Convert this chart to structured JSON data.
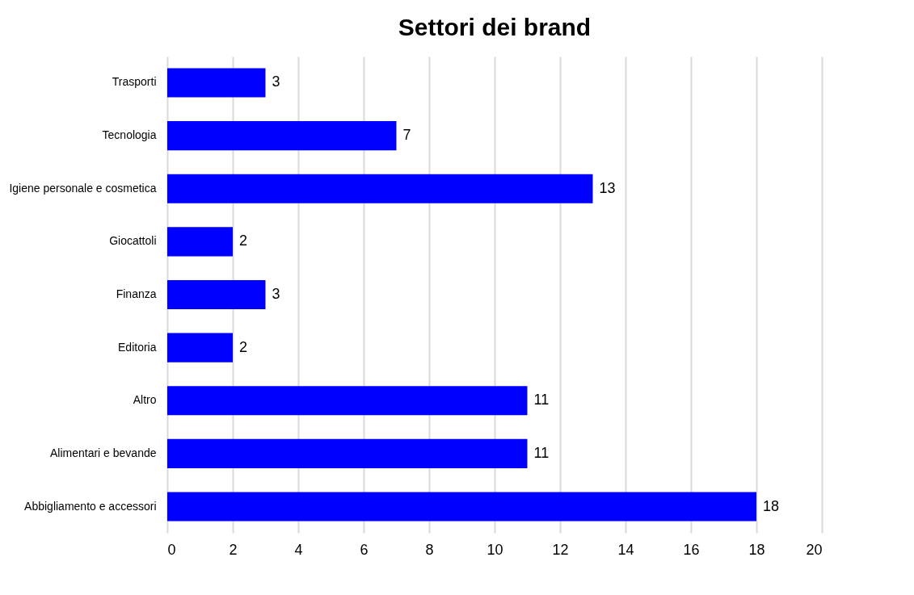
{
  "chart_data": {
    "type": "bar",
    "orientation": "horizontal",
    "title": "Settori dei brand",
    "categories": [
      "Trasporti",
      "Tecnologia",
      "Igiene personale e cosmetica",
      "Giocattoli",
      "Finanza",
      "Editoria",
      "Altro",
      "Alimentari e bevande",
      "Abbigliamento e accessori"
    ],
    "values": [
      3,
      7,
      13,
      2,
      3,
      2,
      11,
      11,
      18
    ],
    "color": "#0000ff",
    "xlim": [
      0,
      20
    ],
    "xticks": [
      0,
      2,
      4,
      6,
      8,
      10,
      12,
      14,
      16,
      18,
      20
    ],
    "grid": "x",
    "data_labels": true
  }
}
